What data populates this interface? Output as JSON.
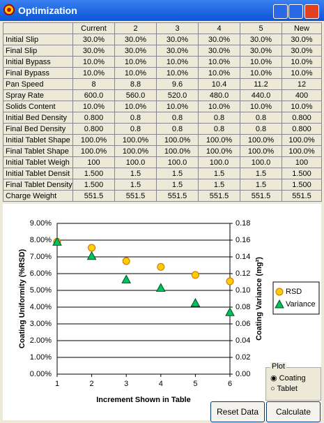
{
  "window": {
    "title": "Optimization"
  },
  "table": {
    "columns": [
      "",
      "Current",
      "2",
      "3",
      "4",
      "5",
      "New"
    ],
    "rows": [
      [
        "Initial Slip",
        "30.0%",
        "30.0%",
        "30.0%",
        "30.0%",
        "30.0%",
        "30.0%"
      ],
      [
        "Final Slip",
        "30.0%",
        "30.0%",
        "30.0%",
        "30.0%",
        "30.0%",
        "30.0%"
      ],
      [
        "Initial Bypass",
        "10.0%",
        "10.0%",
        "10.0%",
        "10.0%",
        "10.0%",
        "10.0%"
      ],
      [
        "Final Bypass",
        "10.0%",
        "10.0%",
        "10.0%",
        "10.0%",
        "10.0%",
        "10.0%"
      ],
      [
        "Pan Speed",
        "8",
        "8.8",
        "9.6",
        "10.4",
        "11.2",
        "12"
      ],
      [
        "Spray Rate",
        "600.0",
        "560.0",
        "520.0",
        "480.0",
        "440.0",
        "400"
      ],
      [
        "Solids Content",
        "10.0%",
        "10.0%",
        "10.0%",
        "10.0%",
        "10.0%",
        "10.0%"
      ],
      [
        "Initial Bed Density",
        "0.800",
        "0.8",
        "0.8",
        "0.8",
        "0.8",
        "0.800"
      ],
      [
        "Final Bed Density",
        "0.800",
        "0.8",
        "0.8",
        "0.8",
        "0.8",
        "0.800"
      ],
      [
        "Initial Tablet Shape",
        "100.0%",
        "100.0%",
        "100.0%",
        "100.0%",
        "100.0%",
        "100.0%"
      ],
      [
        "Final Tablet Shape",
        "100.0%",
        "100.0%",
        "100.0%",
        "100.0%",
        "100.0%",
        "100.0%"
      ],
      [
        "Initial Tablet Weigh",
        "100",
        "100.0",
        "100.0",
        "100.0",
        "100.0",
        "100"
      ],
      [
        "Initial Tablet Densit",
        "1.500",
        "1.5",
        "1.5",
        "1.5",
        "1.5",
        "1.500"
      ],
      [
        "Final Tablet Density",
        "1.500",
        "1.5",
        "1.5",
        "1.5",
        "1.5",
        "1.500"
      ],
      [
        "Charge Weight",
        "551.5",
        "551.5",
        "551.5",
        "551.5",
        "551.5",
        "551.5"
      ]
    ]
  },
  "chart_data": {
    "type": "scatter",
    "x_label": "Increment Shown in Table",
    "y_label": "Coating Uniformity (%RSD)",
    "y2_label": "Coating Variance (mg²)",
    "x": [
      1,
      2,
      3,
      4,
      5,
      6
    ],
    "xlim": [
      1,
      6
    ],
    "xticks": [
      1,
      2,
      3,
      4,
      5,
      6
    ],
    "ylim": [
      0,
      9
    ],
    "yticks": [
      {
        "value": 0,
        "label": "0.00%"
      },
      {
        "value": 1,
        "label": "1.00%"
      },
      {
        "value": 2,
        "label": "2.00%"
      },
      {
        "value": 3,
        "label": "3.00%"
      },
      {
        "value": 4,
        "label": "4.00%"
      },
      {
        "value": 5,
        "label": "5.00%"
      },
      {
        "value": 6,
        "label": "6.00%"
      },
      {
        "value": 7,
        "label": "7.00%"
      },
      {
        "value": 8,
        "label": "8.00%"
      },
      {
        "value": 9,
        "label": "9.00%"
      }
    ],
    "y2lim": [
      0,
      0.18
    ],
    "y2ticks": [
      {
        "value": 0,
        "label": "0.00"
      },
      0.02,
      0.04,
      0.06,
      0.08,
      {
        "value": 0.1,
        "label": "0.10"
      },
      0.12,
      0.14,
      0.16,
      0.18
    ],
    "grid": true,
    "series": [
      {
        "name": "RSD",
        "color": "#ffcc00",
        "values": [
          7.9,
          7.54,
          6.75,
          6.4,
          5.92,
          5.54
        ]
      },
      {
        "name": "Variance",
        "color": "#00c060",
        "axis": "y2",
        "values": [
          0.158,
          0.141,
          0.113,
          0.103,
          0.085,
          0.074
        ]
      }
    ]
  },
  "controls": {
    "plot_group": "Plot",
    "options": [
      "Coating",
      "Tablet"
    ],
    "buttons": [
      "Reset Data",
      "Calculate"
    ]
  }
}
